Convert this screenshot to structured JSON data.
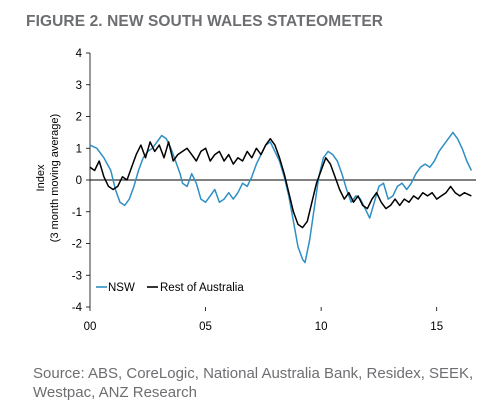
{
  "title": "FIGURE 2. NEW SOUTH WALES STATEOMETER",
  "source": "Source: ABS, CoreLogic, National Australia Bank, Residex, SEEK, Westpac, ANZ Research",
  "chart_data": {
    "type": "line",
    "ylabel_line1": "Index",
    "ylabel_line2": "(3 month moving average)",
    "ylim": [
      -4,
      4
    ],
    "yticks": [
      4,
      3,
      2,
      1,
      0,
      -1,
      -2,
      -3,
      -4
    ],
    "xlim": [
      2000,
      2016.7
    ],
    "xticks": [
      {
        "value": 2000,
        "label": "00"
      },
      {
        "value": 2005,
        "label": "05"
      },
      {
        "value": 2010,
        "label": "10"
      },
      {
        "value": 2015,
        "label": "15"
      }
    ],
    "grid": false,
    "legend_position": "bottom-left",
    "series": [
      {
        "name": "NSW",
        "color": "#2e8fc5",
        "points": [
          [
            2000.0,
            1.1
          ],
          [
            2000.3,
            1.0
          ],
          [
            2000.6,
            0.7
          ],
          [
            2000.9,
            0.3
          ],
          [
            2001.1,
            -0.3
          ],
          [
            2001.3,
            -0.7
          ],
          [
            2001.5,
            -0.8
          ],
          [
            2001.7,
            -0.6
          ],
          [
            2001.9,
            -0.2
          ],
          [
            2002.1,
            0.3
          ],
          [
            2002.3,
            0.7
          ],
          [
            2002.5,
            0.9
          ],
          [
            2002.7,
            1.0
          ],
          [
            2002.9,
            1.2
          ],
          [
            2003.1,
            1.4
          ],
          [
            2003.3,
            1.3
          ],
          [
            2003.5,
            1.0
          ],
          [
            2003.7,
            0.6
          ],
          [
            2003.9,
            0.2
          ],
          [
            2004.0,
            -0.1
          ],
          [
            2004.2,
            -0.2
          ],
          [
            2004.4,
            0.2
          ],
          [
            2004.6,
            -0.1
          ],
          [
            2004.8,
            -0.6
          ],
          [
            2005.0,
            -0.7
          ],
          [
            2005.2,
            -0.5
          ],
          [
            2005.4,
            -0.3
          ],
          [
            2005.6,
            -0.7
          ],
          [
            2005.8,
            -0.6
          ],
          [
            2006.0,
            -0.4
          ],
          [
            2006.2,
            -0.6
          ],
          [
            2006.4,
            -0.4
          ],
          [
            2006.6,
            -0.1
          ],
          [
            2006.8,
            -0.2
          ],
          [
            2007.0,
            0.1
          ],
          [
            2007.2,
            0.5
          ],
          [
            2007.4,
            0.8
          ],
          [
            2007.6,
            1.1
          ],
          [
            2007.8,
            1.2
          ],
          [
            2008.0,
            0.9
          ],
          [
            2008.2,
            0.6
          ],
          [
            2008.4,
            0.1
          ],
          [
            2008.6,
            -0.5
          ],
          [
            2008.8,
            -1.3
          ],
          [
            2009.0,
            -2.1
          ],
          [
            2009.2,
            -2.5
          ],
          [
            2009.3,
            -2.6
          ],
          [
            2009.5,
            -1.9
          ],
          [
            2009.7,
            -0.9
          ],
          [
            2009.9,
            0.1
          ],
          [
            2010.1,
            0.7
          ],
          [
            2010.3,
            0.9
          ],
          [
            2010.5,
            0.8
          ],
          [
            2010.7,
            0.6
          ],
          [
            2010.9,
            0.2
          ],
          [
            2011.1,
            -0.3
          ],
          [
            2011.3,
            -0.7
          ],
          [
            2011.5,
            -0.5
          ],
          [
            2011.7,
            -0.6
          ],
          [
            2011.9,
            -0.9
          ],
          [
            2012.1,
            -1.2
          ],
          [
            2012.3,
            -0.7
          ],
          [
            2012.5,
            -0.2
          ],
          [
            2012.7,
            -0.1
          ],
          [
            2012.9,
            -0.6
          ],
          [
            2013.1,
            -0.5
          ],
          [
            2013.3,
            -0.2
          ],
          [
            2013.5,
            -0.1
          ],
          [
            2013.7,
            -0.3
          ],
          [
            2013.9,
            -0.1
          ],
          [
            2014.1,
            0.2
          ],
          [
            2014.3,
            0.4
          ],
          [
            2014.5,
            0.5
          ],
          [
            2014.7,
            0.4
          ],
          [
            2014.9,
            0.6
          ],
          [
            2015.1,
            0.9
          ],
          [
            2015.3,
            1.1
          ],
          [
            2015.5,
            1.3
          ],
          [
            2015.7,
            1.5
          ],
          [
            2015.9,
            1.3
          ],
          [
            2016.1,
            1.0
          ],
          [
            2016.3,
            0.6
          ],
          [
            2016.5,
            0.3
          ]
        ]
      },
      {
        "name": "Rest of Australia",
        "color": "#000000",
        "points": [
          [
            2000.0,
            0.4
          ],
          [
            2000.2,
            0.3
          ],
          [
            2000.4,
            0.6
          ],
          [
            2000.6,
            0.1
          ],
          [
            2000.8,
            -0.2
          ],
          [
            2001.0,
            -0.3
          ],
          [
            2001.2,
            -0.2
          ],
          [
            2001.4,
            0.1
          ],
          [
            2001.6,
            0.0
          ],
          [
            2001.8,
            0.4
          ],
          [
            2002.0,
            0.8
          ],
          [
            2002.2,
            1.1
          ],
          [
            2002.4,
            0.7
          ],
          [
            2002.6,
            1.2
          ],
          [
            2002.8,
            0.9
          ],
          [
            2003.0,
            1.1
          ],
          [
            2003.2,
            0.7
          ],
          [
            2003.4,
            1.2
          ],
          [
            2003.6,
            0.6
          ],
          [
            2003.8,
            0.8
          ],
          [
            2004.0,
            0.9
          ],
          [
            2004.2,
            1.0
          ],
          [
            2004.4,
            0.8
          ],
          [
            2004.6,
            0.6
          ],
          [
            2004.8,
            0.9
          ],
          [
            2005.0,
            1.0
          ],
          [
            2005.2,
            0.6
          ],
          [
            2005.4,
            0.8
          ],
          [
            2005.6,
            0.9
          ],
          [
            2005.8,
            0.6
          ],
          [
            2006.0,
            0.8
          ],
          [
            2006.2,
            0.5
          ],
          [
            2006.4,
            0.7
          ],
          [
            2006.6,
            0.6
          ],
          [
            2006.8,
            0.9
          ],
          [
            2007.0,
            0.7
          ],
          [
            2007.2,
            1.0
          ],
          [
            2007.4,
            0.8
          ],
          [
            2007.6,
            1.1
          ],
          [
            2007.8,
            1.3
          ],
          [
            2008.0,
            1.1
          ],
          [
            2008.2,
            0.7
          ],
          [
            2008.4,
            0.2
          ],
          [
            2008.6,
            -0.4
          ],
          [
            2008.8,
            -1.0
          ],
          [
            2009.0,
            -1.4
          ],
          [
            2009.2,
            -1.5
          ],
          [
            2009.4,
            -1.3
          ],
          [
            2009.6,
            -0.7
          ],
          [
            2009.8,
            -0.1
          ],
          [
            2010.0,
            0.3
          ],
          [
            2010.2,
            0.7
          ],
          [
            2010.4,
            0.5
          ],
          [
            2010.6,
            0.1
          ],
          [
            2010.8,
            -0.3
          ],
          [
            2011.0,
            -0.6
          ],
          [
            2011.2,
            -0.4
          ],
          [
            2011.4,
            -0.7
          ],
          [
            2011.6,
            -0.5
          ],
          [
            2011.8,
            -0.8
          ],
          [
            2012.0,
            -0.9
          ],
          [
            2012.2,
            -0.6
          ],
          [
            2012.4,
            -0.4
          ],
          [
            2012.6,
            -0.7
          ],
          [
            2012.8,
            -0.9
          ],
          [
            2013.0,
            -0.8
          ],
          [
            2013.2,
            -0.6
          ],
          [
            2013.4,
            -0.8
          ],
          [
            2013.6,
            -0.6
          ],
          [
            2013.8,
            -0.7
          ],
          [
            2014.0,
            -0.5
          ],
          [
            2014.2,
            -0.6
          ],
          [
            2014.4,
            -0.4
          ],
          [
            2014.6,
            -0.5
          ],
          [
            2014.8,
            -0.4
          ],
          [
            2015.0,
            -0.6
          ],
          [
            2015.2,
            -0.5
          ],
          [
            2015.4,
            -0.4
          ],
          [
            2015.6,
            -0.2
          ],
          [
            2015.8,
            -0.4
          ],
          [
            2016.0,
            -0.5
          ],
          [
            2016.2,
            -0.4
          ],
          [
            2016.5,
            -0.5
          ]
        ]
      }
    ]
  }
}
